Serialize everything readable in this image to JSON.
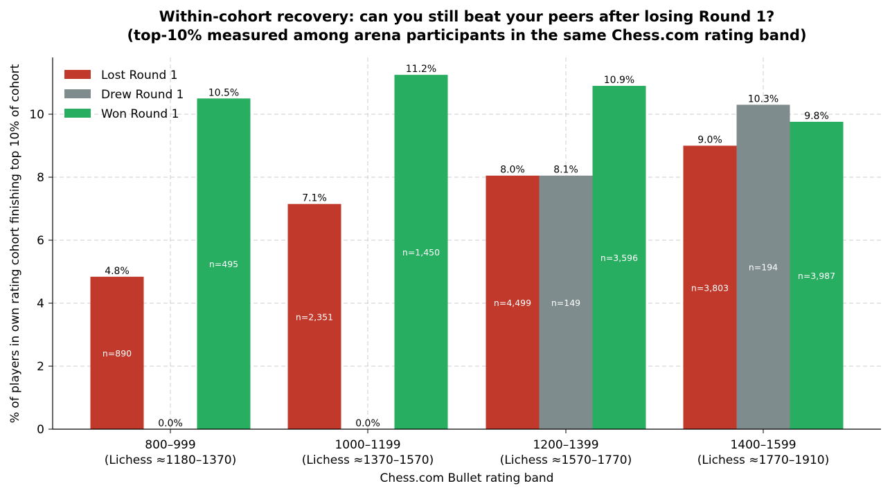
{
  "chart_data": {
    "type": "bar",
    "title_line1": "Within-cohort recovery: can you still beat your peers after losing Round 1?",
    "title_line2": "(top-10% measured among arena participants in the same Chess.com rating band)",
    "xlabel": "Chess.com Bullet rating band",
    "ylabel": "% of players in own rating cohort finishing top 10% of cohort",
    "ylim": [
      0,
      11.8
    ],
    "yticks": [
      "0",
      "2",
      "4",
      "6",
      "8",
      "10"
    ],
    "grid": true,
    "legend_position": "top-left",
    "categories": [
      {
        "line1": "800–999",
        "line2": "(Lichess ≈1180–1370)"
      },
      {
        "line1": "1000–1199",
        "line2": "(Lichess ≈1370–1570)"
      },
      {
        "line1": "1200–1399",
        "line2": "(Lichess ≈1570–1770)"
      },
      {
        "line1": "1400–1599",
        "line2": "(Lichess ≈1770–1910)"
      }
    ],
    "series": [
      {
        "name": "Lost Round 1",
        "color": "#c0392b",
        "values": [
          4.84,
          7.15,
          8.05,
          9.0
        ],
        "value_labels": [
          "4.8%",
          "7.1%",
          "8.0%",
          "9.0%"
        ],
        "n_labels": [
          "n=890",
          "n=2,351",
          "n=4,499",
          "n=3,803"
        ]
      },
      {
        "name": "Drew Round 1",
        "color": "#7f8c8d",
        "values": [
          0.0,
          0.0,
          8.05,
          10.3
        ],
        "value_labels": [
          "0.0%",
          "0.0%",
          "8.1%",
          "10.3%"
        ],
        "n_labels": [
          "",
          "",
          "n=149",
          "n=194"
        ]
      },
      {
        "name": "Won Round 1",
        "color": "#27ae60",
        "values": [
          10.5,
          11.25,
          10.9,
          9.76
        ],
        "value_labels": [
          "10.5%",
          "11.2%",
          "10.9%",
          "9.8%"
        ],
        "n_labels": [
          "n=495",
          "n=1,450",
          "n=3,596",
          "n=3,987"
        ]
      }
    ]
  }
}
